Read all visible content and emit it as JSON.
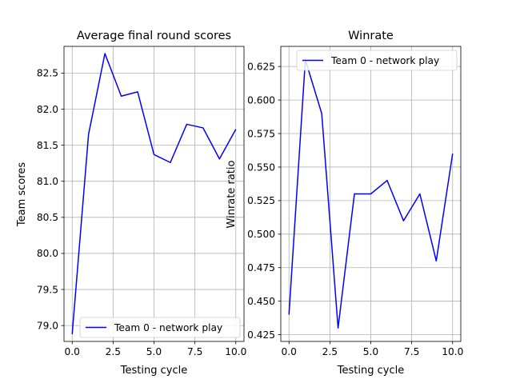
{
  "chart_data": [
    {
      "type": "line",
      "title": "Average final round scores",
      "xlabel": "Testing cycle",
      "ylabel": "Team scores",
      "xlim": [
        -0.5,
        10.5
      ],
      "ylim": [
        78.78,
        82.87
      ],
      "xticks": [
        0.0,
        2.5,
        5.0,
        7.5,
        10.0
      ],
      "xtick_labels": [
        "0.0",
        "2.5",
        "5.0",
        "7.5",
        "10.0"
      ],
      "yticks": [
        79.0,
        79.5,
        80.0,
        80.5,
        81.0,
        81.5,
        82.0,
        82.5
      ],
      "ytick_labels": [
        "79.0",
        "79.5",
        "80.0",
        "80.5",
        "81.0",
        "81.5",
        "82.0",
        "82.5"
      ],
      "grid": true,
      "legend_position": "lower right",
      "series": [
        {
          "name": "Team 0 - network play",
          "color": "#0000ff",
          "x": [
            0,
            1,
            2,
            3,
            4,
            5,
            6,
            7,
            8,
            9,
            10
          ],
          "values": [
            78.88,
            81.65,
            82.77,
            82.18,
            82.24,
            81.37,
            81.26,
            81.79,
            81.74,
            81.31,
            81.72
          ]
        }
      ]
    },
    {
      "type": "line",
      "title": "Winrate",
      "xlabel": "Testing cycle",
      "ylabel": "Winrate ratio",
      "xlim": [
        -0.5,
        10.5
      ],
      "ylim": [
        0.42,
        0.64
      ],
      "xticks": [
        0.0,
        2.5,
        5.0,
        7.5,
        10.0
      ],
      "xtick_labels": [
        "0.0",
        "2.5",
        "5.0",
        "7.5",
        "10.0"
      ],
      "yticks": [
        0.425,
        0.45,
        0.475,
        0.5,
        0.525,
        0.55,
        0.575,
        0.6,
        0.625
      ],
      "ytick_labels": [
        "0.425",
        "0.450",
        "0.475",
        "0.500",
        "0.525",
        "0.550",
        "0.575",
        "0.600",
        "0.625"
      ],
      "grid": true,
      "legend_position": "upper right",
      "series": [
        {
          "name": "Team 0 - network play",
          "color": "#0000ff",
          "x": [
            0,
            1,
            2,
            3,
            4,
            5,
            6,
            7,
            8,
            9,
            10
          ],
          "values": [
            0.44,
            0.63,
            0.59,
            0.43,
            0.53,
            0.53,
            0.54,
            0.51,
            0.53,
            0.48,
            0.56
          ]
        }
      ]
    }
  ]
}
